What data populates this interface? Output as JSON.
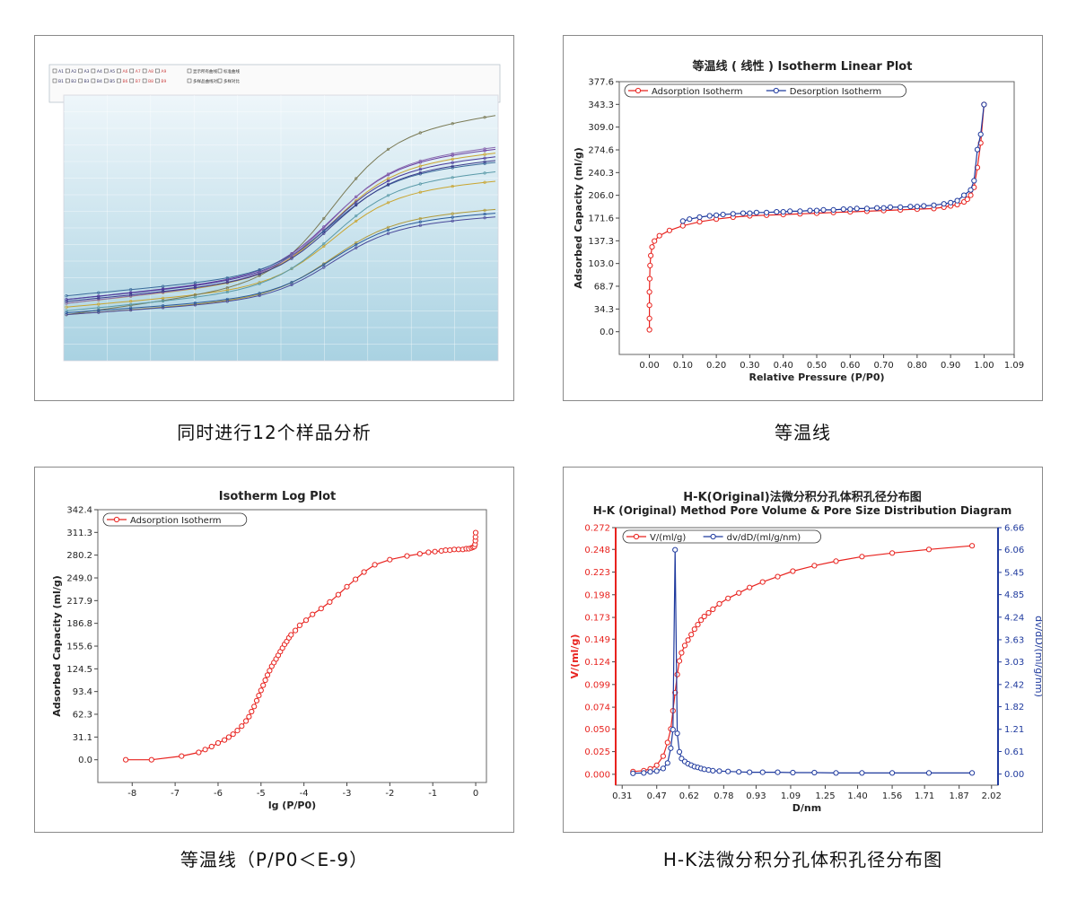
{
  "captions": {
    "multi": "同时进行12个样品分析",
    "linear": "等温线",
    "log": "等温线（P/P0＜E-9）",
    "hk": "H-K法微分积分孔体积孔径分布图"
  },
  "multi_chart": {
    "legend_items": [
      "A1",
      "A2",
      "A3",
      "A4",
      "A5",
      "A6",
      "A7",
      "A8",
      "A9",
      "B1",
      "B2",
      "B3",
      "B4",
      "B5",
      "B6",
      "B7",
      "B8",
      "B9"
    ],
    "legend_options": [
      "显示所有曲线",
      "标准曲线",
      "多样品曲线对比",
      "多样对比"
    ],
    "series_colors": [
      "#c9a530",
      "#c9a530",
      "#7a7a55",
      "#6b3fa0",
      "#4a3a9a",
      "#3a6a9a",
      "#5a9aa8",
      "#8a6ab0",
      "#3a3a8a",
      "#b09a3a",
      "#4a4a9a",
      "#2a5a9a"
    ]
  },
  "chart_data": [
    {
      "type": "line",
      "title": "等温线 ( 线性 )  Isotherm Linear Plot",
      "xlabel": "Relative Pressure (P/P0)",
      "ylabel": "Adsorbed Capacity (ml/g)",
      "xlim": [
        -0.09,
        1.09
      ],
      "ylim": [
        -34.3,
        377.6
      ],
      "xticks": [
        "0.00",
        "0.10",
        "0.20",
        "0.30",
        "0.40",
        "0.50",
        "0.60",
        "0.70",
        "0.80",
        "0.90",
        "1.00",
        "1.09"
      ],
      "yticks": [
        "0.0",
        "34.3",
        "68.7",
        "103.0",
        "137.3",
        "171.6",
        "206.0",
        "240.3",
        "274.6",
        "309.0",
        "343.3",
        "377.6"
      ],
      "legend": "top-left",
      "series": [
        {
          "name": "Adsorption Isotherm",
          "color": "#e8231f",
          "x": [
            0.0,
            0.0,
            0.0,
            0.0,
            0.001,
            0.002,
            0.004,
            0.008,
            0.015,
            0.03,
            0.06,
            0.1,
            0.15,
            0.2,
            0.25,
            0.3,
            0.35,
            0.4,
            0.45,
            0.5,
            0.55,
            0.6,
            0.65,
            0.7,
            0.75,
            0.8,
            0.85,
            0.88,
            0.9,
            0.92,
            0.94,
            0.95,
            0.96,
            0.97,
            0.98,
            0.99,
            1.0
          ],
          "y": [
            3,
            20,
            40,
            60,
            80,
            100,
            115,
            128,
            137,
            145,
            153,
            160,
            166,
            170,
            173,
            175,
            176,
            177,
            178,
            179,
            180,
            181,
            182,
            183,
            184,
            185,
            186,
            188,
            190,
            192,
            196,
            200,
            206,
            218,
            248,
            285,
            343
          ]
        },
        {
          "name": "Desorption Isotherm",
          "color": "#1f3a9e",
          "x": [
            1.0,
            0.99,
            0.98,
            0.97,
            0.96,
            0.94,
            0.92,
            0.9,
            0.88,
            0.85,
            0.82,
            0.8,
            0.78,
            0.75,
            0.72,
            0.7,
            0.68,
            0.65,
            0.62,
            0.6,
            0.58,
            0.55,
            0.52,
            0.5,
            0.48,
            0.45,
            0.42,
            0.4,
            0.38,
            0.35,
            0.32,
            0.3,
            0.28,
            0.25,
            0.22,
            0.2,
            0.18,
            0.15,
            0.12,
            0.1
          ],
          "y": [
            343,
            298,
            275,
            228,
            214,
            206,
            198,
            195,
            193,
            191,
            190,
            189,
            189,
            188,
            188,
            187,
            187,
            186,
            186,
            185,
            185,
            184,
            184,
            183,
            183,
            182,
            182,
            181,
            181,
            180,
            180,
            179,
            179,
            178,
            177,
            176,
            175,
            173,
            170,
            167
          ]
        }
      ]
    },
    {
      "type": "line",
      "title": "Isotherm Log Plot",
      "xlabel": "lg (P/P0)",
      "ylabel": "Adsorbed Capacity (ml/g)",
      "xlim": [
        -8.8,
        0.25
      ],
      "ylim": [
        -31.1,
        342.4
      ],
      "xticks": [
        "-8",
        "-7",
        "-6",
        "-5",
        "-4",
        "-3",
        "-2",
        "-1",
        "0"
      ],
      "yticks": [
        "0.0",
        "31.1",
        "62.3",
        "93.4",
        "124.5",
        "155.6",
        "186.8",
        "217.9",
        "249.0",
        "280.2",
        "311.3",
        "342.4"
      ],
      "legend": "top-left",
      "series": [
        {
          "name": "Adsorption Isotherm",
          "color": "#e8231f",
          "x": [
            -8.15,
            -7.55,
            -6.85,
            -6.45,
            -6.3,
            -6.15,
            -6.0,
            -5.85,
            -5.75,
            -5.65,
            -5.55,
            -5.45,
            -5.35,
            -5.28,
            -5.22,
            -5.16,
            -5.1,
            -5.05,
            -5.0,
            -4.95,
            -4.9,
            -4.85,
            -4.8,
            -4.75,
            -4.7,
            -4.65,
            -4.6,
            -4.55,
            -4.5,
            -4.45,
            -4.4,
            -4.35,
            -4.3,
            -4.2,
            -4.1,
            -3.95,
            -3.8,
            -3.6,
            -3.4,
            -3.2,
            -3.0,
            -2.8,
            -2.6,
            -2.35,
            -2.0,
            -1.6,
            -1.3,
            -1.1,
            -0.95,
            -0.8,
            -0.7,
            -0.6,
            -0.5,
            -0.4,
            -0.3,
            -0.22,
            -0.16,
            -0.1,
            -0.06,
            -0.03,
            -0.015,
            -0.008,
            -0.004,
            0.0
          ],
          "y": [
            0,
            0,
            5,
            10,
            14,
            18,
            23,
            27,
            31,
            35,
            40,
            46,
            53,
            59,
            66,
            73,
            81,
            88,
            95,
            102,
            109,
            116,
            122,
            128,
            133,
            138,
            143,
            148,
            153,
            158,
            162,
            167,
            171,
            177,
            184,
            191,
            199,
            207,
            216,
            226,
            237,
            247,
            257,
            267,
            274,
            279,
            282,
            284,
            285,
            286,
            287,
            287,
            288,
            288,
            288,
            289,
            289,
            290,
            291,
            292,
            295,
            300,
            305,
            311
          ]
        }
      ]
    },
    {
      "type": "line",
      "title": "H-K(Original)法微分积分孔体积孔径分布图",
      "subtitle": "H-K (Original) Method Pore Volume & Pore Size Distribution Diagram",
      "xlabel": "D/nm",
      "ylabel": "V/(ml/g)",
      "ylabel_right": "dv/dD/(ml/g/nm)",
      "xlim": [
        0.28,
        2.05
      ],
      "ylim": [
        -0.012,
        0.272
      ],
      "ylim_right": [
        -0.3,
        6.66
      ],
      "xticks": [
        "0.31",
        "0.47",
        "0.62",
        "0.78",
        "0.93",
        "1.09",
        "1.25",
        "1.40",
        "1.56",
        "1.71",
        "1.87",
        "2.02"
      ],
      "yticks": [
        "0.000",
        "0.025",
        "0.050",
        "0.074",
        "0.099",
        "0.124",
        "0.149",
        "0.173",
        "0.198",
        "0.223",
        "0.248",
        "0.272"
      ],
      "yticks_right": [
        "0.00",
        "0.61",
        "1.21",
        "1.82",
        "2.42",
        "3.03",
        "3.63",
        "4.24",
        "4.85",
        "5.45",
        "6.06",
        "6.66"
      ],
      "legend": "top-left",
      "series": [
        {
          "name": "V/(ml/g)",
          "color": "#e8231f",
          "axis": "left",
          "x": [
            0.36,
            0.41,
            0.44,
            0.47,
            0.5,
            0.52,
            0.535,
            0.545,
            0.555,
            0.565,
            0.575,
            0.585,
            0.6,
            0.615,
            0.63,
            0.645,
            0.66,
            0.675,
            0.69,
            0.71,
            0.73,
            0.76,
            0.8,
            0.85,
            0.9,
            0.96,
            1.03,
            1.1,
            1.2,
            1.3,
            1.42,
            1.56,
            1.73,
            1.93
          ],
          "y": [
            0.003,
            0.004,
            0.006,
            0.01,
            0.02,
            0.035,
            0.05,
            0.07,
            0.09,
            0.11,
            0.125,
            0.134,
            0.142,
            0.148,
            0.154,
            0.16,
            0.165,
            0.17,
            0.174,
            0.178,
            0.182,
            0.188,
            0.194,
            0.2,
            0.206,
            0.212,
            0.218,
            0.224,
            0.23,
            0.235,
            0.24,
            0.244,
            0.248,
            0.252
          ]
        },
        {
          "name": "dv/dD/(ml/g/nm)",
          "color": "#1f3a9e",
          "axis": "right",
          "x": [
            0.36,
            0.41,
            0.44,
            0.47,
            0.5,
            0.52,
            0.535,
            0.545,
            0.555,
            0.565,
            0.575,
            0.585,
            0.6,
            0.615,
            0.63,
            0.645,
            0.66,
            0.675,
            0.69,
            0.71,
            0.73,
            0.76,
            0.8,
            0.85,
            0.9,
            0.96,
            1.03,
            1.1,
            1.2,
            1.3,
            1.42,
            1.56,
            1.73,
            1.93
          ],
          "y": [
            0.02,
            0.03,
            0.06,
            0.08,
            0.15,
            0.3,
            0.7,
            1.2,
            6.06,
            1.1,
            0.6,
            0.42,
            0.34,
            0.28,
            0.24,
            0.2,
            0.18,
            0.15,
            0.13,
            0.11,
            0.09,
            0.08,
            0.07,
            0.06,
            0.05,
            0.05,
            0.05,
            0.04,
            0.04,
            0.03,
            0.03,
            0.03,
            0.03,
            0.03
          ]
        }
      ]
    }
  ]
}
